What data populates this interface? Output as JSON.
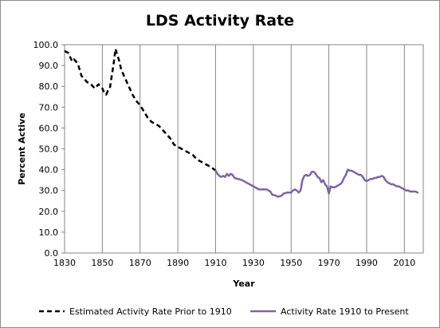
{
  "chart_data": {
    "type": "line",
    "title": "LDS Activity Rate",
    "xlabel": "Year",
    "ylabel": "Percent Active",
    "xlim": [
      1830,
      2020
    ],
    "ylim": [
      0,
      100
    ],
    "x_ticks": [
      "1830",
      "1850",
      "1870",
      "1890",
      "1910",
      "1930",
      "1950",
      "1970",
      "1990",
      "2010"
    ],
    "y_ticks": [
      "0.0",
      "10.0",
      "20.0",
      "30.0",
      "40.0",
      "50.0",
      "60.0",
      "70.0",
      "80.0",
      "90.0",
      "100.0"
    ],
    "grid": "vertical",
    "legend_position": "bottom",
    "series": [
      {
        "name": "Estimated Activity Rate Prior to 1910",
        "color": "#000000",
        "style": "dashed",
        "points": [
          [
            1830,
            97
          ],
          [
            1832,
            96
          ],
          [
            1833,
            94
          ],
          [
            1834,
            92
          ],
          [
            1835,
            93
          ],
          [
            1836,
            92
          ],
          [
            1837,
            91
          ],
          [
            1838,
            88
          ],
          [
            1839,
            85
          ],
          [
            1840,
            84
          ],
          [
            1842,
            82
          ],
          [
            1844,
            81
          ],
          [
            1845,
            80
          ],
          [
            1846,
            79
          ],
          [
            1847,
            80
          ],
          [
            1848,
            81
          ],
          [
            1849,
            80
          ],
          [
            1850,
            79
          ],
          [
            1851,
            77
          ],
          [
            1852,
            76
          ],
          [
            1853,
            78
          ],
          [
            1854,
            79
          ],
          [
            1855,
            85
          ],
          [
            1856,
            91
          ],
          [
            1857,
            98
          ],
          [
            1858,
            95
          ],
          [
            1859,
            92
          ],
          [
            1860,
            88
          ],
          [
            1862,
            84
          ],
          [
            1864,
            80
          ],
          [
            1866,
            76
          ],
          [
            1868,
            73
          ],
          [
            1870,
            71
          ],
          [
            1872,
            68
          ],
          [
            1874,
            65
          ],
          [
            1876,
            63
          ],
          [
            1878,
            62
          ],
          [
            1880,
            61
          ],
          [
            1882,
            59
          ],
          [
            1884,
            57
          ],
          [
            1886,
            55
          ],
          [
            1888,
            52
          ],
          [
            1890,
            51
          ],
          [
            1892,
            50
          ],
          [
            1894,
            49
          ],
          [
            1896,
            48
          ],
          [
            1898,
            47
          ],
          [
            1900,
            45
          ],
          [
            1902,
            44
          ],
          [
            1904,
            43
          ],
          [
            1906,
            42
          ],
          [
            1908,
            41
          ],
          [
            1910,
            39.5
          ]
        ]
      },
      {
        "name": "Activity Rate 1910 to Present",
        "color": "#8064a2",
        "style": "solid",
        "points": [
          [
            1910,
            39.5
          ],
          [
            1911,
            38
          ],
          [
            1912,
            37
          ],
          [
            1913,
            36.5
          ],
          [
            1914,
            37
          ],
          [
            1915,
            36.5
          ],
          [
            1916,
            38
          ],
          [
            1917,
            37
          ],
          [
            1918,
            38
          ],
          [
            1919,
            37.5
          ],
          [
            1920,
            36
          ],
          [
            1922,
            35.5
          ],
          [
            1924,
            35
          ],
          [
            1926,
            34
          ],
          [
            1928,
            33
          ],
          [
            1930,
            32
          ],
          [
            1932,
            31
          ],
          [
            1933,
            30.5
          ],
          [
            1935,
            30.5
          ],
          [
            1937,
            30.5
          ],
          [
            1938,
            30
          ],
          [
            1939,
            29.5
          ],
          [
            1940,
            28
          ],
          [
            1942,
            27.5
          ],
          [
            1943,
            27
          ],
          [
            1945,
            27.5
          ],
          [
            1946,
            28.5
          ],
          [
            1948,
            29
          ],
          [
            1950,
            29
          ],
          [
            1951,
            30
          ],
          [
            1952,
            30.5
          ],
          [
            1953,
            30
          ],
          [
            1954,
            29
          ],
          [
            1955,
            30
          ],
          [
            1956,
            35
          ],
          [
            1957,
            37
          ],
          [
            1958,
            37.5
          ],
          [
            1959,
            37
          ],
          [
            1960,
            37.5
          ],
          [
            1961,
            39
          ],
          [
            1962,
            39
          ],
          [
            1963,
            38
          ],
          [
            1964,
            36.5
          ],
          [
            1965,
            36
          ],
          [
            1966,
            34
          ],
          [
            1967,
            35
          ],
          [
            1968,
            33
          ],
          [
            1969,
            32
          ],
          [
            1970,
            28.5
          ],
          [
            1971,
            32
          ],
          [
            1972,
            31.5
          ],
          [
            1973,
            31.5
          ],
          [
            1974,
            32
          ],
          [
            1975,
            32.5
          ],
          [
            1976,
            33
          ],
          [
            1977,
            34
          ],
          [
            1978,
            36
          ],
          [
            1979,
            37.5
          ],
          [
            1980,
            40
          ],
          [
            1981,
            39.5
          ],
          [
            1982,
            39.5
          ],
          [
            1983,
            39
          ],
          [
            1984,
            38.5
          ],
          [
            1985,
            38
          ],
          [
            1986,
            37.5
          ],
          [
            1987,
            37.5
          ],
          [
            1988,
            36.5
          ],
          [
            1989,
            35
          ],
          [
            1990,
            34.5
          ],
          [
            1991,
            35
          ],
          [
            1992,
            35.5
          ],
          [
            1993,
            35.5
          ],
          [
            1994,
            36
          ],
          [
            1995,
            36
          ],
          [
            1996,
            36.5
          ],
          [
            1997,
            36.5
          ],
          [
            1998,
            37
          ],
          [
            1999,
            36.5
          ],
          [
            2000,
            35
          ],
          [
            2001,
            34
          ],
          [
            2002,
            33.5
          ],
          [
            2003,
            33
          ],
          [
            2004,
            33
          ],
          [
            2005,
            32.5
          ],
          [
            2006,
            32
          ],
          [
            2007,
            32
          ],
          [
            2008,
            31.5
          ],
          [
            2009,
            31
          ],
          [
            2010,
            30.5
          ],
          [
            2011,
            30
          ],
          [
            2012,
            30
          ],
          [
            2013,
            29.5
          ],
          [
            2014,
            29.5
          ],
          [
            2015,
            29.5
          ],
          [
            2016,
            29.5
          ],
          [
            2017,
            29
          ]
        ]
      }
    ]
  }
}
